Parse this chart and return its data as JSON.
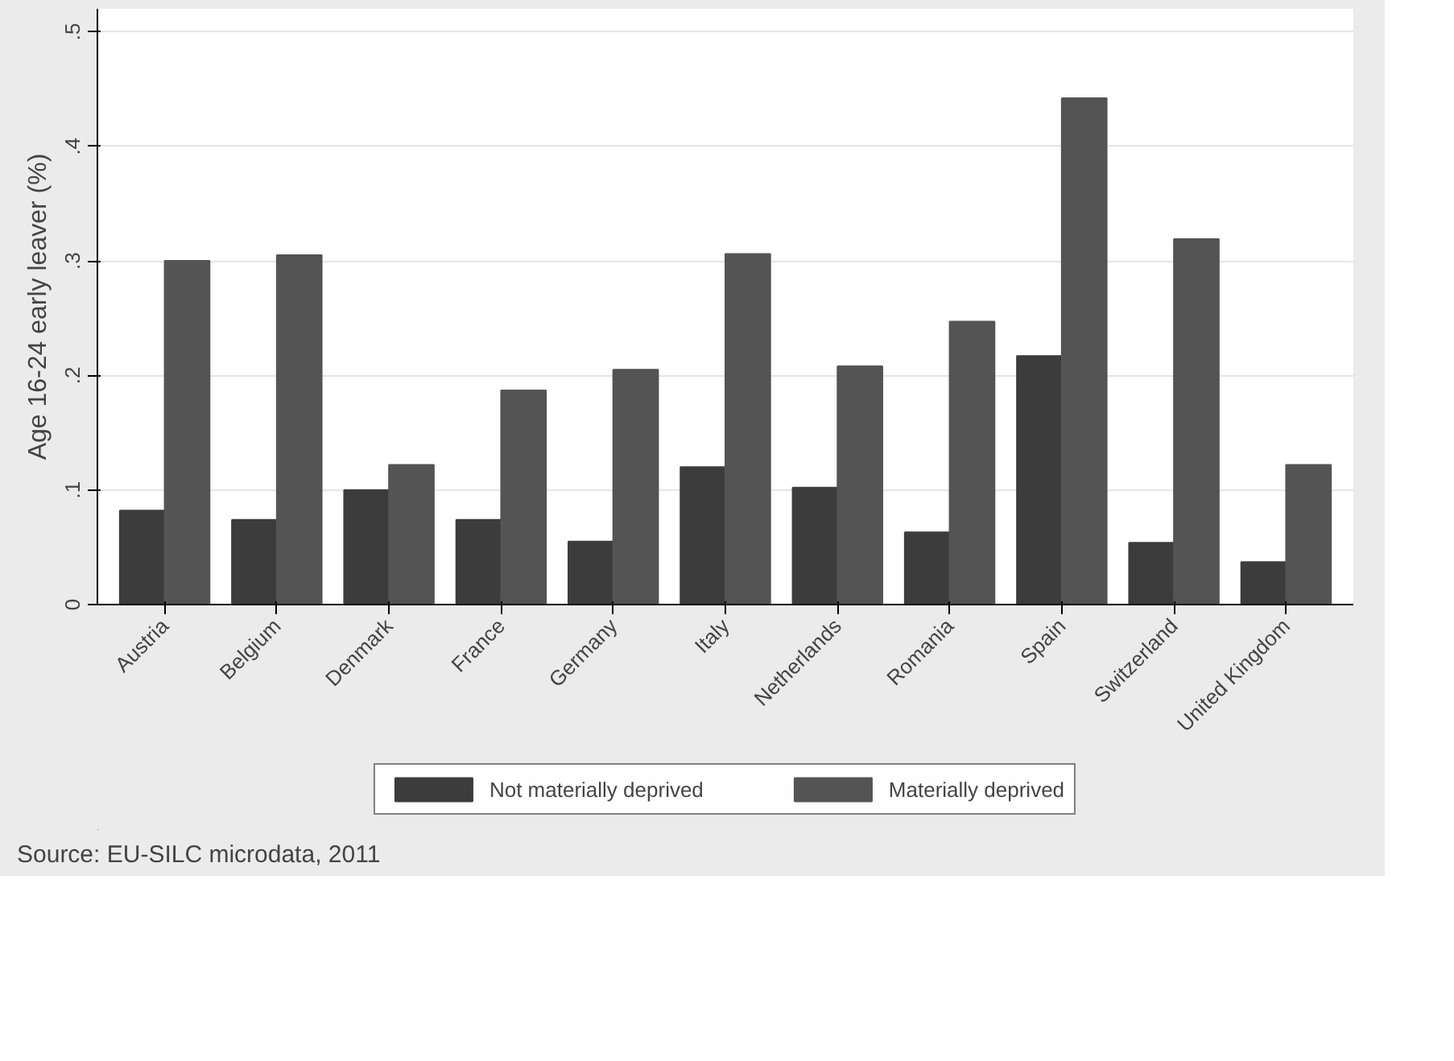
{
  "chart_data": {
    "type": "bar",
    "ylabel": "Age 16-24 early leaver (%)",
    "categories": [
      "Austria",
      "Belgium",
      "Denmark",
      "France",
      "Germany",
      "Italy",
      "Netherlands",
      "Romania",
      "Spain",
      "Switzerland",
      "United Kingdom"
    ],
    "series": [
      {
        "name": "Not materially deprived",
        "color": "#3c3c3c",
        "values": [
          0.082,
          0.074,
          0.1,
          0.074,
          0.055,
          0.12,
          0.102,
          0.063,
          0.217,
          0.054,
          0.037
        ]
      },
      {
        "name": "Materially deprived",
        "color": "#545454",
        "values": [
          0.3,
          0.305,
          0.122,
          0.187,
          0.205,
          0.306,
          0.208,
          0.247,
          0.442,
          0.319,
          0.122
        ]
      }
    ],
    "ylim": [
      0,
      0.52
    ],
    "yticks": [
      {
        "value": 0,
        "label": "0"
      },
      {
        "value": 0.1,
        "label": ".1"
      },
      {
        "value": 0.2,
        "label": ".2"
      },
      {
        "value": 0.3,
        "label": ".3"
      },
      {
        "value": 0.4,
        "label": ".4"
      },
      {
        "value": 0.5,
        "label": ".5"
      }
    ],
    "grid": "y",
    "legend": "bottom",
    "annotations": [
      "Source: EU-SILC microdata, 2011"
    ]
  }
}
